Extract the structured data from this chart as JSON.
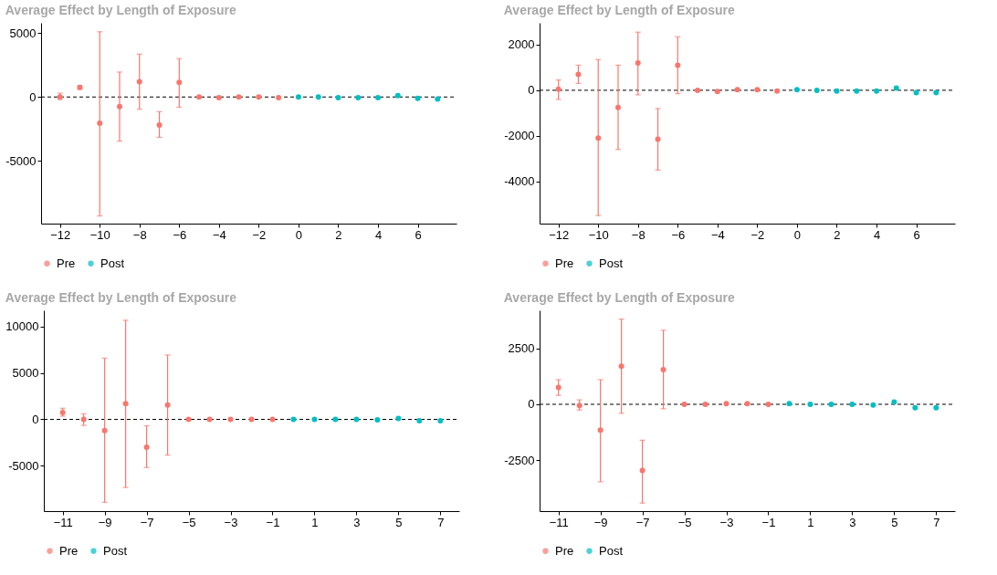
{
  "chart_data": [
    {
      "type": "scatter",
      "title": "Average Effect by Length of Exposure",
      "xlim": [
        -12.95,
        7.95
      ],
      "xticks": [
        -12,
        -10,
        -8,
        -6,
        -4,
        -2,
        0,
        2,
        4,
        6
      ],
      "ylim": [
        -9900,
        5800
      ],
      "yticks": [
        -5000,
        0,
        5000
      ],
      "grid": false,
      "legend": "bottom",
      "marker": "circle",
      "ref_lines": [
        {
          "axis": "y",
          "value": 0,
          "line_style": "dashed",
          "color": "#000000"
        }
      ],
      "series": [
        {
          "name": "Pre",
          "color": "#f8766d",
          "x": [
            -12,
            -11,
            -10,
            -9,
            -8,
            -7,
            -6,
            -5,
            -4,
            -3,
            -2,
            -1
          ],
          "values": [
            0,
            750,
            -2050,
            -750,
            1200,
            -2200,
            1150,
            0,
            -50,
            0,
            0,
            -50
          ],
          "errors": [
            [
              -200,
              300
            ],
            [
              600,
              900
            ],
            [
              -9300,
              5100
            ],
            [
              -3450,
              1950
            ],
            [
              -950,
              3350
            ],
            [
              -3150,
              -1150
            ],
            [
              -800,
              3000
            ],
            null,
            null,
            null,
            null,
            null
          ]
        },
        {
          "name": "Post",
          "color": "#00bfc4",
          "x": [
            0,
            1,
            2,
            3,
            4,
            5,
            6,
            7
          ],
          "values": [
            0,
            0,
            -50,
            -50,
            -50,
            100,
            -100,
            -150
          ]
        }
      ]
    },
    {
      "type": "scatter",
      "title": "Average Effect by Length of Exposure",
      "xlim": [
        -12.95,
        7.95
      ],
      "xticks": [
        -12,
        -10,
        -8,
        -6,
        -4,
        -2,
        0,
        2,
        4,
        6
      ],
      "ylim": [
        -5850,
        2960
      ],
      "yticks": [
        -4000,
        -2000,
        0,
        2000
      ],
      "grid": false,
      "legend": "bottom",
      "marker": "circle",
      "ref_lines": [
        {
          "axis": "y",
          "value": 0,
          "line_style": "dashed",
          "color": "#000000"
        }
      ],
      "series": [
        {
          "name": "Pre",
          "color": "#f8766d",
          "x": [
            -12,
            -11,
            -10,
            -9,
            -8,
            -7,
            -6,
            -5,
            -4,
            -3,
            -2,
            -1
          ],
          "values": [
            50,
            700,
            -2100,
            -750,
            1200,
            -2150,
            1100,
            0,
            -50,
            30,
            30,
            -30
          ],
          "errors": [
            [
              -400,
              450
            ],
            [
              300,
              1100
            ],
            [
              -5500,
              1350
            ],
            [
              -2600,
              1100
            ],
            [
              -200,
              2550
            ],
            [
              -3500,
              -800
            ],
            [
              -150,
              2350
            ],
            null,
            null,
            null,
            null,
            null
          ]
        },
        {
          "name": "Post",
          "color": "#00bfc4",
          "x": [
            0,
            1,
            2,
            3,
            4,
            5,
            6,
            7
          ],
          "values": [
            30,
            0,
            -30,
            -30,
            -30,
            100,
            -100,
            -100
          ]
        }
      ]
    },
    {
      "type": "scatter",
      "title": "Average Effect by Length of Exposure",
      "xlim": [
        -11.9,
        7.9
      ],
      "xticks": [
        -11,
        -9,
        -7,
        -5,
        -3,
        -1,
        1,
        3,
        5,
        7
      ],
      "ylim": [
        -9900,
        11770
      ],
      "yticks": [
        -5000,
        0,
        5000,
        10000
      ],
      "grid": false,
      "legend": "bottom",
      "marker": "circle",
      "ref_lines": [
        {
          "axis": "y",
          "value": 0,
          "line_style": "dashed",
          "color": "#000000"
        }
      ],
      "series": [
        {
          "name": "Pre",
          "color": "#f8766d",
          "x": [
            -11,
            -10,
            -9,
            -8,
            -7,
            -6,
            -5,
            -4,
            -3,
            -2,
            -1
          ],
          "values": [
            750,
            0,
            -1200,
            1700,
            -3000,
            1550,
            0,
            0,
            0,
            0,
            0
          ],
          "errors": [
            [
              350,
              1200
            ],
            [
              -650,
              600
            ],
            [
              -8950,
              6600
            ],
            [
              -7350,
              10700
            ],
            [
              -5200,
              -700
            ],
            [
              -3850,
              6950
            ],
            null,
            null,
            null,
            null,
            null
          ]
        },
        {
          "name": "Post",
          "color": "#00bfc4",
          "x": [
            0,
            1,
            2,
            3,
            4,
            5,
            6,
            7
          ],
          "values": [
            0,
            0,
            0,
            0,
            -50,
            100,
            -150,
            -150
          ]
        }
      ]
    },
    {
      "type": "scatter",
      "title": "Average Effect by Length of Exposure",
      "xlim": [
        -11.9,
        7.9
      ],
      "xticks": [
        -11,
        -9,
        -7,
        -5,
        -3,
        -1,
        1,
        3,
        5,
        7
      ],
      "ylim": [
        -4760,
        4190
      ],
      "yticks": [
        -2500,
        0,
        2500
      ],
      "grid": false,
      "legend": "bottom",
      "marker": "circle",
      "ref_lines": [
        {
          "axis": "y",
          "value": 0,
          "line_style": "dashed",
          "color": "#000000"
        }
      ],
      "series": [
        {
          "name": "Pre",
          "color": "#f8766d",
          "x": [
            -11,
            -10,
            -9,
            -8,
            -7,
            -6,
            -5,
            -4,
            -3,
            -2,
            -1
          ],
          "values": [
            750,
            -50,
            -1150,
            1700,
            -2950,
            1550,
            0,
            0,
            30,
            30,
            0
          ],
          "errors": [
            [
              400,
              1100
            ],
            [
              -250,
              200
            ],
            [
              -3450,
              1100
            ],
            [
              -400,
              3800
            ],
            [
              -4400,
              -1600
            ],
            [
              -200,
              3300
            ],
            null,
            null,
            null,
            null,
            null
          ]
        },
        {
          "name": "Post",
          "color": "#00bfc4",
          "x": [
            0,
            1,
            2,
            3,
            4,
            5,
            6,
            7
          ],
          "values": [
            30,
            0,
            0,
            0,
            -30,
            100,
            -150,
            -150
          ]
        }
      ]
    }
  ]
}
